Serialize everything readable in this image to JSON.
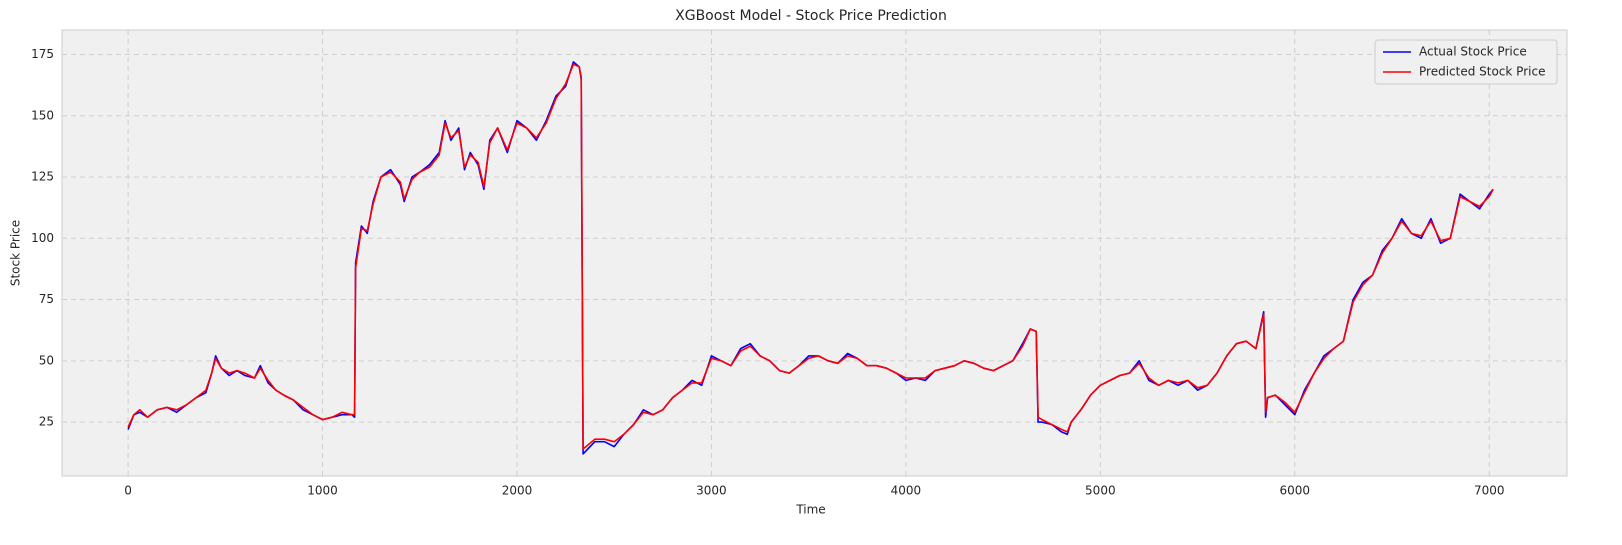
{
  "chart_data": {
    "type": "line",
    "title": "XGBoost Model - Stock Price Prediction",
    "x_label": "Time",
    "y_label": "Stock Price",
    "x": [
      0,
      30,
      60,
      100,
      150,
      200,
      250,
      300,
      350,
      400,
      430,
      450,
      480,
      520,
      560,
      600,
      650,
      680,
      720,
      760,
      800,
      850,
      900,
      950,
      1000,
      1050,
      1100,
      1150,
      1165,
      1170,
      1200,
      1230,
      1260,
      1300,
      1350,
      1400,
      1420,
      1460,
      1500,
      1550,
      1600,
      1630,
      1660,
      1700,
      1730,
      1760,
      1800,
      1830,
      1860,
      1900,
      1950,
      2000,
      2050,
      2100,
      2150,
      2200,
      2250,
      2290,
      2320,
      2330,
      2340,
      2400,
      2450,
      2500,
      2550,
      2600,
      2650,
      2700,
      2750,
      2800,
      2850,
      2900,
      2950,
      3000,
      3050,
      3100,
      3150,
      3200,
      3250,
      3300,
      3350,
      3400,
      3450,
      3500,
      3550,
      3600,
      3650,
      3700,
      3750,
      3800,
      3850,
      3900,
      3950,
      4000,
      4050,
      4100,
      4150,
      4200,
      4250,
      4300,
      4350,
      4400,
      4450,
      4500,
      4550,
      4600,
      4640,
      4670,
      4680,
      4700,
      4750,
      4800,
      4830,
      4850,
      4900,
      4950,
      5000,
      5050,
      5100,
      5150,
      5200,
      5250,
      5300,
      5350,
      5400,
      5450,
      5500,
      5550,
      5600,
      5650,
      5700,
      5750,
      5800,
      5840,
      5850,
      5860,
      5900,
      5950,
      6000,
      6050,
      6100,
      6150,
      6200,
      6250,
      6300,
      6350,
      6400,
      6450,
      6500,
      6550,
      6600,
      6650,
      6700,
      6750,
      6800,
      6850,
      6900,
      6950,
      7000,
      7020
    ],
    "series": [
      {
        "name": "Actual Stock Price",
        "color": "#0000ff",
        "values": [
          22,
          28,
          29,
          27,
          30,
          31,
          29,
          32,
          35,
          37,
          45,
          52,
          47,
          44,
          46,
          44,
          43,
          48,
          41,
          38,
          36,
          34,
          30,
          28,
          26,
          27,
          28,
          28,
          27,
          90,
          105,
          102,
          115,
          125,
          128,
          122,
          115,
          125,
          127,
          130,
          135,
          148,
          140,
          145,
          128,
          135,
          130,
          120,
          140,
          145,
          135,
          148,
          145,
          140,
          148,
          158,
          162,
          172,
          170,
          165,
          12,
          17,
          17,
          15,
          20,
          24,
          30,
          28,
          30,
          35,
          38,
          42,
          40,
          52,
          50,
          48,
          55,
          57,
          52,
          50,
          46,
          45,
          48,
          52,
          52,
          50,
          49,
          53,
          51,
          48,
          48,
          47,
          45,
          42,
          43,
          42,
          46,
          47,
          48,
          50,
          49,
          47,
          46,
          48,
          50,
          57,
          63,
          62,
          25,
          25,
          24,
          21,
          20,
          25,
          30,
          36,
          40,
          42,
          44,
          45,
          50,
          42,
          40,
          42,
          40,
          42,
          38,
          40,
          45,
          52,
          57,
          58,
          55,
          70,
          27,
          35,
          36,
          32,
          28,
          38,
          45,
          52,
          55,
          58,
          75,
          82,
          85,
          95,
          100,
          108,
          102,
          100,
          108,
          98,
          100,
          118,
          115,
          112,
          118,
          120
        ]
      },
      {
        "name": "Predicted Stock Price",
        "color": "#ff0000",
        "values": [
          23,
          28,
          30,
          27,
          30,
          31,
          30,
          32,
          35,
          38,
          45,
          51,
          47,
          45,
          46,
          45,
          43,
          47,
          42,
          38,
          36,
          34,
          31,
          28,
          26,
          27,
          29,
          28,
          28,
          88,
          104,
          103,
          114,
          125,
          127,
          123,
          116,
          124,
          127,
          129,
          134,
          147,
          141,
          144,
          129,
          134,
          131,
          121,
          139,
          145,
          136,
          147,
          145,
          141,
          147,
          157,
          163,
          171,
          170,
          166,
          14,
          18,
          18,
          17,
          20,
          24,
          29,
          28,
          30,
          35,
          38,
          41,
          41,
          51,
          50,
          48,
          54,
          56,
          52,
          50,
          46,
          45,
          48,
          51,
          52,
          50,
          49,
          52,
          51,
          48,
          48,
          47,
          45,
          43,
          43,
          43,
          46,
          47,
          48,
          50,
          49,
          47,
          46,
          48,
          50,
          56,
          63,
          62,
          27,
          26,
          24,
          22,
          21,
          25,
          30,
          36,
          40,
          42,
          44,
          45,
          49,
          43,
          40,
          42,
          41,
          42,
          39,
          40,
          45,
          52,
          57,
          58,
          55,
          69,
          29,
          35,
          36,
          33,
          29,
          37,
          45,
          51,
          55,
          58,
          74,
          81,
          85,
          94,
          100,
          107,
          102,
          101,
          107,
          99,
          100,
          117,
          115,
          113,
          117,
          120
        ]
      }
    ],
    "xlim": [
      -340,
      7400
    ],
    "ylim": [
      3,
      185
    ],
    "xticks": [
      0,
      1000,
      2000,
      3000,
      4000,
      5000,
      6000,
      7000
    ],
    "yticks": [
      25,
      50,
      75,
      100,
      125,
      150,
      175
    ],
    "grid": true,
    "legend": "upper right"
  }
}
